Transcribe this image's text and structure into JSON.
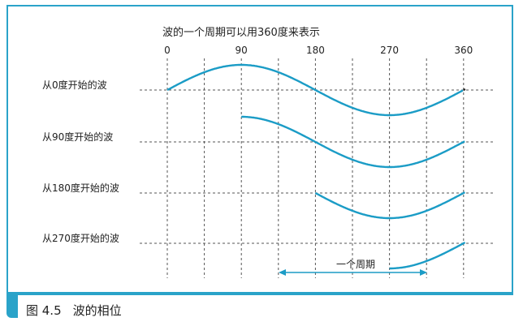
{
  "title": "波的一个周期可以用360度来表示",
  "phase_ticks": [
    "0",
    "90",
    "180",
    "270",
    "360"
  ],
  "rows": [
    {
      "label": "从0度开始的波",
      "start_phase": 0
    },
    {
      "label": "从90度开始的波",
      "start_phase": 90
    },
    {
      "label": "从180度开始的波",
      "start_phase": 180
    },
    {
      "label": "从270度开始的波",
      "start_phase": 270
    }
  ],
  "period_label": "一个周期",
  "caption": {
    "figure": "图 4.5",
    "text": "波的相位"
  },
  "colors": {
    "accent": "#2aa3c9",
    "wave_cycle": "#1b9cc6",
    "wave_rest": "#222222",
    "grid": "#555555"
  }
}
